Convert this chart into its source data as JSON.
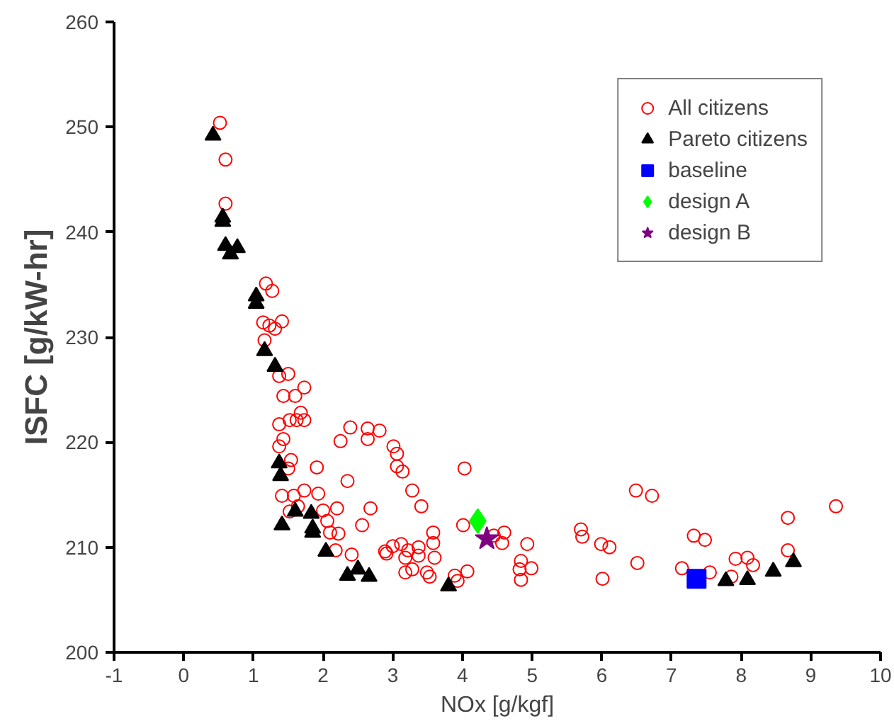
{
  "chart_data": {
    "type": "scatter",
    "xlabel": "NOx [g/kgf]",
    "ylabel": "ISFC [g/kW-hr]",
    "xlim": [
      -1,
      10
    ],
    "ylim": [
      200,
      260
    ],
    "xticks": [
      -1,
      0,
      1,
      2,
      3,
      4,
      5,
      6,
      7,
      8,
      9,
      10
    ],
    "yticks": [
      200,
      210,
      220,
      230,
      240,
      250,
      260
    ],
    "grid": false,
    "legend": "top right",
    "series": [
      {
        "name": "All citizens",
        "color": "#ff0000",
        "marker": "circle",
        "x": [
          0.52,
          0.6,
          0.6,
          1.18,
          1.27,
          1.14,
          1.23,
          1.31,
          1.41,
          1.16,
          1.5,
          1.37,
          1.43,
          1.6,
          1.73,
          1.37,
          1.52,
          1.62,
          1.68,
          1.73,
          1.43,
          1.37,
          1.54,
          1.91,
          2.25,
          2.39,
          2.64,
          2.64,
          2.81,
          2.35,
          1.5,
          1.41,
          1.73,
          1.58,
          1.93,
          1.52,
          1.64,
          2.0,
          2.2,
          2.68,
          2.56,
          2.06,
          2.1,
          2.22,
          2.18,
          2.41,
          2.89,
          3.01,
          3.06,
          3.06,
          3.14,
          3.28,
          3.41,
          2.91,
          3.0,
          3.12,
          3.22,
          3.18,
          3.37,
          3.37,
          3.58,
          3.58,
          3.6,
          3.18,
          3.28,
          3.49,
          3.53,
          3.89,
          3.93,
          4.07,
          4.03,
          4.01,
          4.45,
          4.6,
          4.57,
          4.93,
          4.84,
          4.99,
          4.82,
          4.84,
          5.7,
          5.72,
          5.99,
          6.11,
          6.01,
          6.49,
          6.72,
          6.51,
          7.15,
          7.32,
          7.48,
          7.55,
          7.92,
          8.09,
          8.17,
          7.86,
          8.67,
          8.67,
          9.36
        ],
        "values": [
          250.4,
          246.9,
          242.7,
          235.1,
          234.4,
          231.4,
          231.1,
          230.8,
          231.5,
          229.7,
          226.5,
          226.3,
          224.4,
          224.4,
          225.2,
          221.7,
          222.1,
          222.1,
          222.8,
          222.1,
          220.3,
          219.6,
          218.3,
          217.6,
          220.1,
          221.4,
          221.3,
          220.3,
          221.1,
          216.3,
          217.5,
          214.9,
          215.4,
          214.9,
          215.1,
          213.4,
          213.9,
          213.5,
          213.7,
          213.7,
          212.1,
          212.5,
          211.4,
          211.3,
          209.7,
          209.3,
          209.6,
          219.6,
          218.9,
          217.7,
          217.2,
          215.4,
          213.9,
          209.4,
          210.1,
          210.3,
          209.7,
          209.0,
          210.0,
          209.2,
          211.4,
          210.4,
          209.0,
          207.6,
          207.9,
          207.6,
          207.2,
          207.3,
          206.8,
          207.7,
          217.5,
          212.1,
          211.1,
          211.4,
          210.4,
          210.3,
          208.7,
          208.0,
          207.9,
          206.9,
          211.7,
          211.0,
          210.3,
          210.0,
          207.0,
          215.4,
          214.9,
          208.5,
          208.0,
          211.1,
          210.7,
          207.6,
          208.9,
          209.0,
          208.3,
          207.2,
          212.8,
          209.7,
          213.9
        ]
      },
      {
        "name": "Pareto citizens",
        "color": "#000000",
        "marker": "triangle",
        "x": [
          0.42,
          0.56,
          0.56,
          0.6,
          0.67,
          0.77,
          1.04,
          1.04,
          1.16,
          1.31,
          1.37,
          1.39,
          1.41,
          1.6,
          1.83,
          1.85,
          1.85,
          2.04,
          2.35,
          2.5,
          2.66,
          3.8,
          7.78,
          8.09,
          8.46,
          8.75
        ],
        "values": [
          249.2,
          241.4,
          241.0,
          238.7,
          237.9,
          238.5,
          233.9,
          233.2,
          228.7,
          227.2,
          218.0,
          216.8,
          212.1,
          213.4,
          213.2,
          211.8,
          211.4,
          209.6,
          207.3,
          207.9,
          207.2,
          206.3,
          206.8,
          206.9,
          207.7,
          208.6
        ]
      },
      {
        "name": "baseline",
        "color": "#0000ff",
        "marker": "square",
        "x": [
          7.36
        ],
        "values": [
          207.0
        ]
      },
      {
        "name": "design A",
        "color": "#00ff00",
        "marker": "diamond",
        "x": [
          4.22
        ],
        "values": [
          212.5
        ]
      },
      {
        "name": "design B",
        "color": "#800080",
        "marker": "star",
        "x": [
          4.35
        ],
        "values": [
          210.8
        ]
      }
    ]
  }
}
